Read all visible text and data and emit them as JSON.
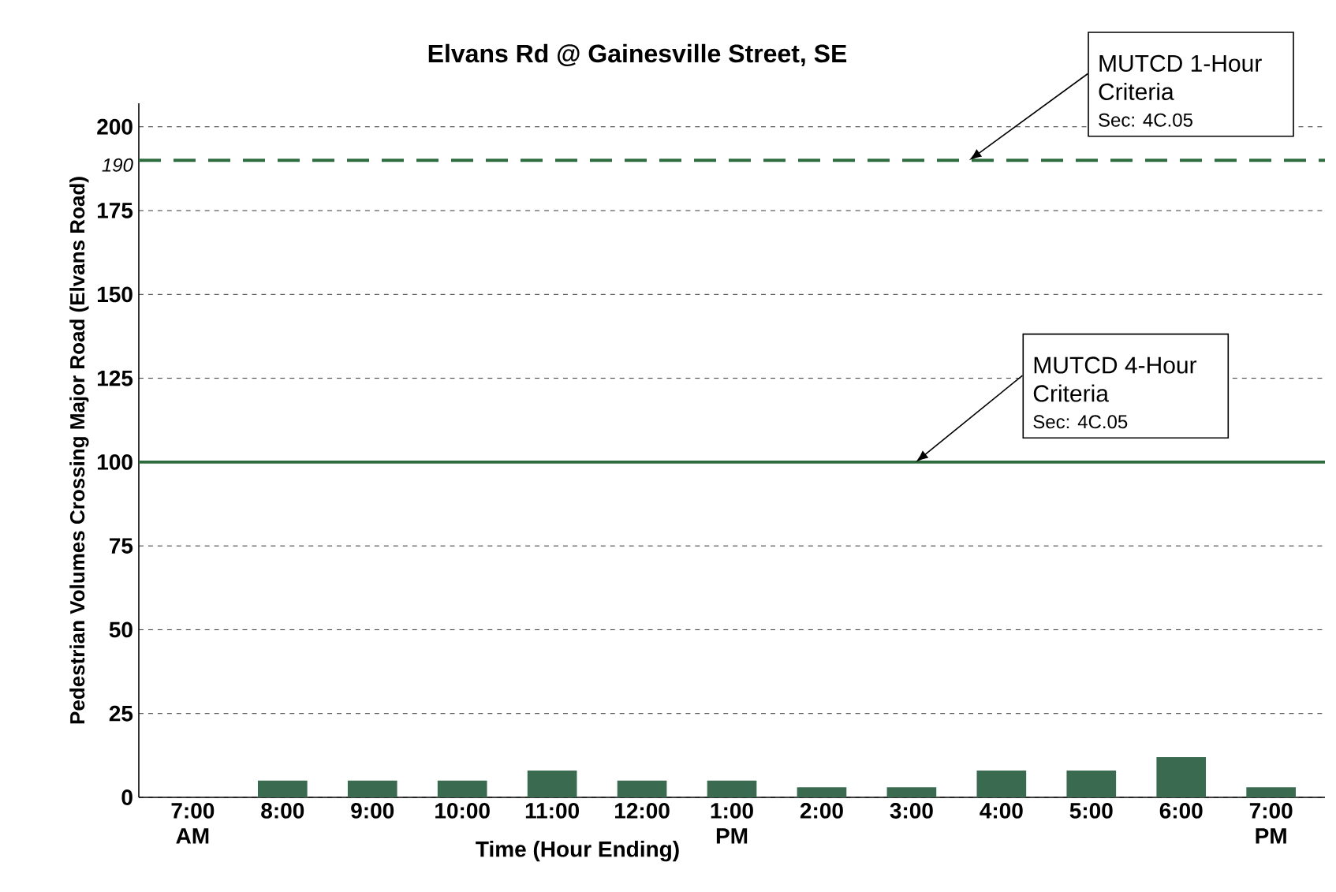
{
  "chart_data": {
    "type": "bar",
    "title": "Elvans Rd @ Gainesville Street, SE",
    "xlabel": "Time (Hour Ending)",
    "ylabel": "Pedestrian Volumes Crossing Major Road (Elvans Road)",
    "categories": [
      "7:00 AM",
      "8:00",
      "9:00",
      "10:00",
      "11:00",
      "12:00",
      "1:00 PM",
      "2:00",
      "3:00",
      "4:00",
      "5:00",
      "6:00",
      "7:00 PM"
    ],
    "values": [
      0,
      5,
      5,
      5,
      8,
      5,
      5,
      3,
      3,
      8,
      8,
      12,
      3
    ],
    "color": "#3a6b50",
    "ylim": [
      0,
      207
    ],
    "yticks": [
      0,
      25,
      50,
      75,
      100,
      125,
      150,
      175,
      200
    ],
    "grid": "y",
    "ref_lines": [
      {
        "axis": "y",
        "value": 190,
        "label": "190",
        "color": "#2e6b3e",
        "line_style": "dashed"
      },
      {
        "axis": "y",
        "value": 100,
        "color": "#2e6b3e",
        "line_style": "solid"
      }
    ],
    "annotations": [
      {
        "text": "MUTCD 1-Hour Criteria",
        "y": 190
      },
      {
        "text": "Sec: 4C.05",
        "y": 190
      },
      {
        "text": "MUTCD 4-Hour Criteria",
        "y": 100
      },
      {
        "text": "Sec: 4C.05",
        "y": 100
      }
    ]
  }
}
